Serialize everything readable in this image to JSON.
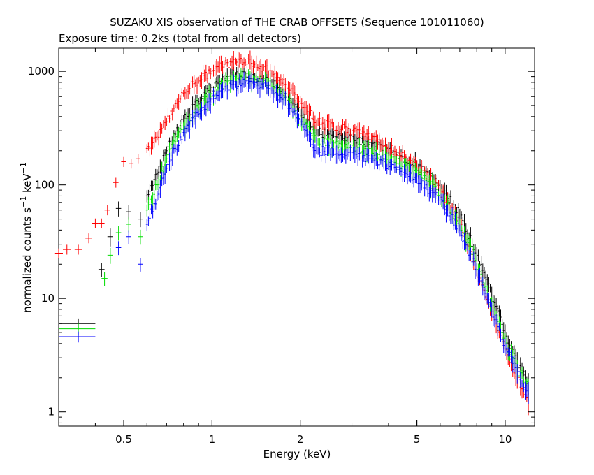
{
  "title": "SUZAKU XIS observation of THE CRAB OFFSETS (Sequence 101011060)",
  "subtitle": "Exposure time: 0.2ks (total from all detectors)",
  "chart_data": {
    "type": "scatter",
    "title": "SUZAKU XIS observation of THE CRAB OFFSETS (Sequence 101011060)",
    "subtitle": "Exposure time: 0.2ks (total from all detectors)",
    "xlabel": "Energy (keV)",
    "ylabel": {
      "main": "normalized counts s",
      "exp1": "−1",
      "mid": " keV",
      "exp2": "−1"
    },
    "x_scale": "log",
    "y_scale": "log",
    "xlim": [
      0.3,
      12.6
    ],
    "ylim": [
      0.75,
      1600
    ],
    "grid": false,
    "legend": "none",
    "x_ticks": [
      {
        "value": 0.5,
        "label": "0.5"
      },
      {
        "value": 1,
        "label": "1"
      },
      {
        "value": 2,
        "label": "2"
      },
      {
        "value": 5,
        "label": "5"
      },
      {
        "value": 10,
        "label": "10"
      }
    ],
    "y_ticks": [
      {
        "value": 1,
        "label": "1"
      },
      {
        "value": 10,
        "label": "10"
      },
      {
        "value": 100,
        "label": "100"
      },
      {
        "value": 1000,
        "label": "1000"
      }
    ],
    "series": [
      {
        "color": "#000000",
        "points": [
          [
            0.35,
            6.0,
            0.05,
            0.11
          ],
          [
            0.42,
            18,
            0.01,
            0.14
          ],
          [
            0.45,
            35,
            0.01,
            0.18
          ],
          [
            0.48,
            62,
            0.01,
            0.15
          ],
          [
            0.52,
            58,
            0.01,
            0.15
          ],
          [
            0.57,
            50,
            0.01,
            0.15
          ],
          [
            0.6,
            80,
            0.005,
            0.12
          ],
          [
            0.65,
            125,
            0.005,
            0.1
          ],
          [
            0.7,
            200,
            0.005,
            0.09
          ],
          [
            0.75,
            280,
            0.005,
            0.08
          ],
          [
            0.8,
            380,
            0.005,
            0.08
          ],
          [
            0.9,
            540,
            0.005,
            0.07
          ],
          [
            1.0,
            720,
            0.005,
            0.07
          ],
          [
            1.1,
            860,
            0.005,
            0.07
          ],
          [
            1.2,
            920,
            0.005,
            0.07
          ],
          [
            1.3,
            930,
            0.005,
            0.07
          ],
          [
            1.4,
            900,
            0.005,
            0.07
          ],
          [
            1.5,
            860,
            0.005,
            0.07
          ],
          [
            1.6,
            800,
            0.005,
            0.07
          ],
          [
            1.8,
            620,
            0.005,
            0.08
          ],
          [
            2.0,
            430,
            0.005,
            0.08
          ],
          [
            2.3,
            290,
            0.005,
            0.08
          ],
          [
            2.6,
            280,
            0.005,
            0.08
          ],
          [
            3.0,
            260,
            0.005,
            0.09
          ],
          [
            3.5,
            230,
            0.005,
            0.09
          ],
          [
            4.0,
            200,
            0.005,
            0.1
          ],
          [
            5.0,
            150,
            0.005,
            0.1
          ],
          [
            6.0,
            100,
            0.005,
            0.11
          ],
          [
            7.0,
            55,
            0.005,
            0.12
          ],
          [
            8.0,
            25,
            0.005,
            0.13
          ],
          [
            9.0,
            11,
            0.005,
            0.15
          ],
          [
            10.0,
            5,
            0.01,
            0.18
          ],
          [
            11.0,
            2.8,
            0.01,
            0.2
          ],
          [
            12.0,
            1.8,
            0.01,
            0.22
          ]
        ]
      },
      {
        "color": "#ff0000",
        "points": [
          [
            0.3,
            25,
            0.01,
            0.1
          ],
          [
            0.32,
            27,
            0.01,
            0.1
          ],
          [
            0.35,
            27,
            0.01,
            0.1
          ],
          [
            0.38,
            34,
            0.01,
            0.1
          ],
          [
            0.4,
            46,
            0.01,
            0.1
          ],
          [
            0.42,
            46,
            0.01,
            0.1
          ],
          [
            0.44,
            60,
            0.01,
            0.1
          ],
          [
            0.47,
            105,
            0.01,
            0.1
          ],
          [
            0.5,
            160,
            0.01,
            0.1
          ],
          [
            0.53,
            155,
            0.01,
            0.1
          ],
          [
            0.56,
            170,
            0.01,
            0.1
          ],
          [
            0.6,
            210,
            0.005,
            0.09
          ],
          [
            0.65,
            270,
            0.005,
            0.09
          ],
          [
            0.7,
            360,
            0.005,
            0.08
          ],
          [
            0.75,
            520,
            0.005,
            0.08
          ],
          [
            0.8,
            640,
            0.005,
            0.07
          ],
          [
            0.9,
            840,
            0.005,
            0.07
          ],
          [
            1.0,
            1000,
            0.005,
            0.07
          ],
          [
            1.1,
            1150,
            0.005,
            0.07
          ],
          [
            1.2,
            1230,
            0.005,
            0.07
          ],
          [
            1.3,
            1200,
            0.005,
            0.07
          ],
          [
            1.4,
            1150,
            0.005,
            0.07
          ],
          [
            1.5,
            1080,
            0.005,
            0.07
          ],
          [
            1.6,
            960,
            0.005,
            0.07
          ],
          [
            1.8,
            760,
            0.005,
            0.08
          ],
          [
            2.0,
            560,
            0.005,
            0.08
          ],
          [
            2.3,
            360,
            0.005,
            0.08
          ],
          [
            2.6,
            330,
            0.005,
            0.08
          ],
          [
            3.0,
            300,
            0.005,
            0.09
          ],
          [
            3.5,
            260,
            0.005,
            0.09
          ],
          [
            4.0,
            215,
            0.005,
            0.1
          ],
          [
            5.0,
            150,
            0.005,
            0.1
          ],
          [
            6.0,
            90,
            0.005,
            0.11
          ],
          [
            7.0,
            45,
            0.005,
            0.12
          ],
          [
            8.0,
            18,
            0.005,
            0.13
          ],
          [
            9.0,
            7.5,
            0.005,
            0.15
          ],
          [
            10.0,
            3.8,
            0.01,
            0.18
          ],
          [
            11.0,
            2.0,
            0.01,
            0.2
          ],
          [
            12.0,
            1.2,
            0.01,
            0.22
          ]
        ]
      },
      {
        "color": "#00dd00",
        "points": [
          [
            0.35,
            5.4,
            0.05,
            0.11
          ],
          [
            0.43,
            15,
            0.01,
            0.14
          ],
          [
            0.45,
            24,
            0.01,
            0.16
          ],
          [
            0.48,
            38,
            0.01,
            0.15
          ],
          [
            0.52,
            45,
            0.01,
            0.15
          ],
          [
            0.57,
            35,
            0.01,
            0.15
          ],
          [
            0.6,
            60,
            0.005,
            0.12
          ],
          [
            0.65,
            100,
            0.005,
            0.1
          ],
          [
            0.7,
            170,
            0.005,
            0.09
          ],
          [
            0.75,
            240,
            0.005,
            0.08
          ],
          [
            0.8,
            330,
            0.005,
            0.08
          ],
          [
            0.9,
            480,
            0.005,
            0.07
          ],
          [
            1.0,
            640,
            0.005,
            0.07
          ],
          [
            1.1,
            790,
            0.005,
            0.07
          ],
          [
            1.2,
            860,
            0.005,
            0.07
          ],
          [
            1.3,
            880,
            0.005,
            0.07
          ],
          [
            1.4,
            850,
            0.005,
            0.07
          ],
          [
            1.5,
            810,
            0.005,
            0.07
          ],
          [
            1.6,
            740,
            0.005,
            0.07
          ],
          [
            1.8,
            560,
            0.005,
            0.08
          ],
          [
            2.0,
            380,
            0.005,
            0.08
          ],
          [
            2.3,
            240,
            0.005,
            0.08
          ],
          [
            2.6,
            230,
            0.005,
            0.08
          ],
          [
            3.0,
            215,
            0.005,
            0.09
          ],
          [
            3.5,
            195,
            0.005,
            0.09
          ],
          [
            4.0,
            170,
            0.005,
            0.1
          ],
          [
            5.0,
            130,
            0.005,
            0.1
          ],
          [
            6.0,
            85,
            0.005,
            0.11
          ],
          [
            7.0,
            45,
            0.005,
            0.12
          ],
          [
            8.0,
            20,
            0.005,
            0.13
          ],
          [
            9.0,
            9,
            0.005,
            0.15
          ],
          [
            10.0,
            4.2,
            0.01,
            0.18
          ],
          [
            11.0,
            2.4,
            0.01,
            0.2
          ],
          [
            12.0,
            1.6,
            0.01,
            0.22
          ]
        ]
      },
      {
        "color": "#0000ff",
        "points": [
          [
            0.35,
            4.6,
            0.05,
            0.11
          ],
          [
            0.48,
            28,
            0.01,
            0.14
          ],
          [
            0.52,
            35,
            0.01,
            0.14
          ],
          [
            0.57,
            20,
            0.01,
            0.14
          ],
          [
            0.6,
            45,
            0.005,
            0.12
          ],
          [
            0.65,
            80,
            0.005,
            0.1
          ],
          [
            0.7,
            140,
            0.005,
            0.09
          ],
          [
            0.75,
            210,
            0.005,
            0.08
          ],
          [
            0.8,
            290,
            0.005,
            0.08
          ],
          [
            0.9,
            420,
            0.005,
            0.07
          ],
          [
            1.0,
            570,
            0.005,
            0.07
          ],
          [
            1.1,
            700,
            0.005,
            0.07
          ],
          [
            1.2,
            770,
            0.005,
            0.07
          ],
          [
            1.3,
            790,
            0.005,
            0.07
          ],
          [
            1.4,
            770,
            0.005,
            0.07
          ],
          [
            1.5,
            740,
            0.005,
            0.07
          ],
          [
            1.6,
            680,
            0.005,
            0.07
          ],
          [
            1.8,
            520,
            0.005,
            0.08
          ],
          [
            2.0,
            350,
            0.005,
            0.08
          ],
          [
            2.3,
            200,
            0.005,
            0.08
          ],
          [
            2.6,
            195,
            0.005,
            0.08
          ],
          [
            3.0,
            185,
            0.005,
            0.09
          ],
          [
            3.5,
            170,
            0.005,
            0.09
          ],
          [
            4.0,
            150,
            0.005,
            0.1
          ],
          [
            5.0,
            115,
            0.005,
            0.1
          ],
          [
            6.0,
            75,
            0.005,
            0.11
          ],
          [
            7.0,
            40,
            0.005,
            0.12
          ],
          [
            8.0,
            18,
            0.005,
            0.13
          ],
          [
            9.0,
            8,
            0.005,
            0.15
          ],
          [
            10.0,
            3.8,
            0.01,
            0.18
          ],
          [
            11.0,
            2.2,
            0.01,
            0.2
          ],
          [
            12.0,
            1.5,
            0.01,
            0.22
          ]
        ]
      }
    ]
  }
}
